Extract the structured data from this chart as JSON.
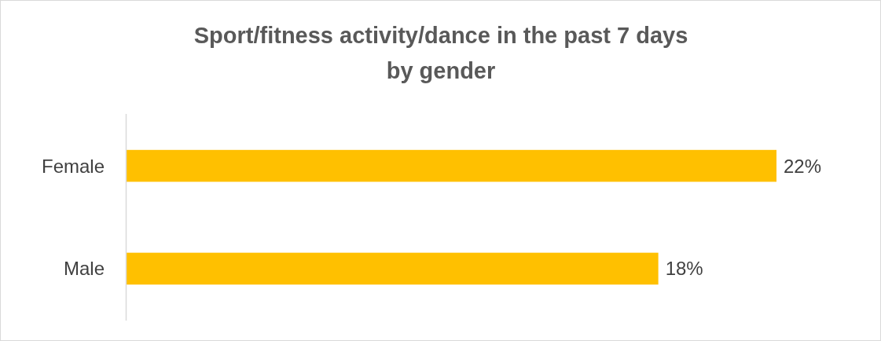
{
  "chart_data": {
    "type": "bar",
    "orientation": "horizontal",
    "title": "Sport/fitness activity/dance in the past 7 days\nby gender",
    "categories": [
      "Female",
      "Male"
    ],
    "values": [
      22,
      18
    ],
    "color": "#ffc000",
    "value_labels": [
      "22%",
      "18%"
    ]
  }
}
